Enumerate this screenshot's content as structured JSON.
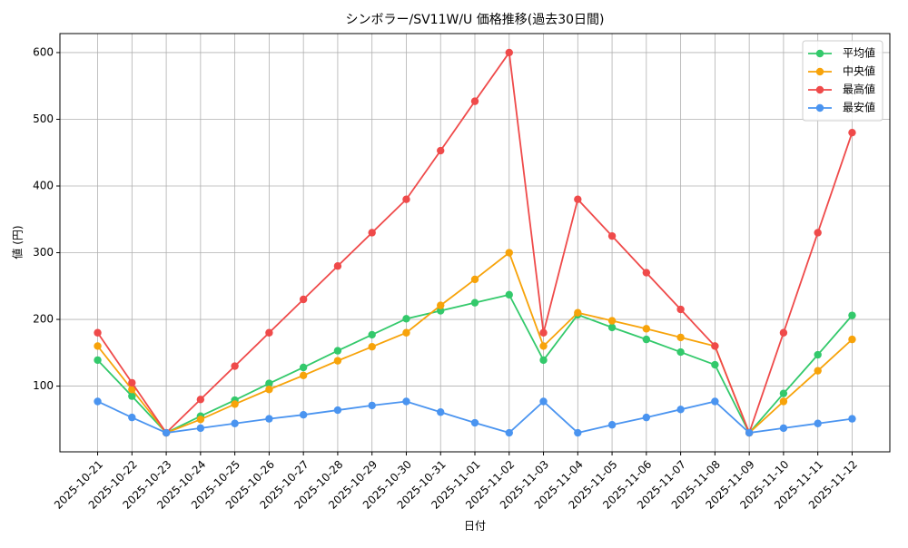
{
  "chart_data": {
    "type": "line",
    "title": "シンボラー/SV11W/U 価格推移(過去30日間)",
    "x_label": "日付",
    "y_label": "値 (円)",
    "categories": [
      "2025-10-21",
      "2025-10-22",
      "2025-10-23",
      "2025-10-24",
      "2025-10-25",
      "2025-10-26",
      "2025-10-27",
      "2025-10-28",
      "2025-10-29",
      "2025-10-30",
      "2025-10-31",
      "2025-11-01",
      "2025-11-02",
      "2025-11-03",
      "2025-11-04",
      "2025-11-05",
      "2025-11-06",
      "2025-11-07",
      "2025-11-08",
      "2025-11-09",
      "2025-11-10",
      "2025-11-11",
      "2025-11-12"
    ],
    "series": [
      {
        "name": "平均値",
        "color": "#33c96b",
        "values": [
          139,
          85,
          30,
          55,
          79,
          104,
          128,
          153,
          177,
          201,
          213,
          225,
          237,
          139,
          207,
          188,
          170,
          151,
          132,
          30,
          89,
          147,
          206
        ]
      },
      {
        "name": "中央値",
        "color": "#f7a30a",
        "values": [
          160,
          95,
          30,
          50,
          73,
          95,
          116,
          138,
          159,
          180,
          221,
          260,
          300,
          160,
          210,
          198,
          186,
          173,
          160,
          30,
          77,
          123,
          170
        ]
      },
      {
        "name": "最高値",
        "color": "#ef4a4a",
        "values": [
          180,
          105,
          30,
          80,
          130,
          180,
          230,
          280,
          330,
          380,
          453,
          527,
          600,
          180,
          380,
          325,
          270,
          215,
          160,
          30,
          180,
          330,
          480
        ]
      },
      {
        "name": "最安値",
        "color": "#4a94f0",
        "values": [
          77,
          53,
          30,
          37,
          44,
          51,
          57,
          64,
          71,
          77,
          61,
          45,
          30,
          77,
          30,
          42,
          53,
          65,
          77,
          30,
          37,
          44,
          51
        ]
      }
    ],
    "ylim": [
      1.5,
      628.5
    ],
    "yticks": [
      100,
      200,
      300,
      400,
      500,
      600
    ],
    "grid": true,
    "legend": "upper-right"
  }
}
